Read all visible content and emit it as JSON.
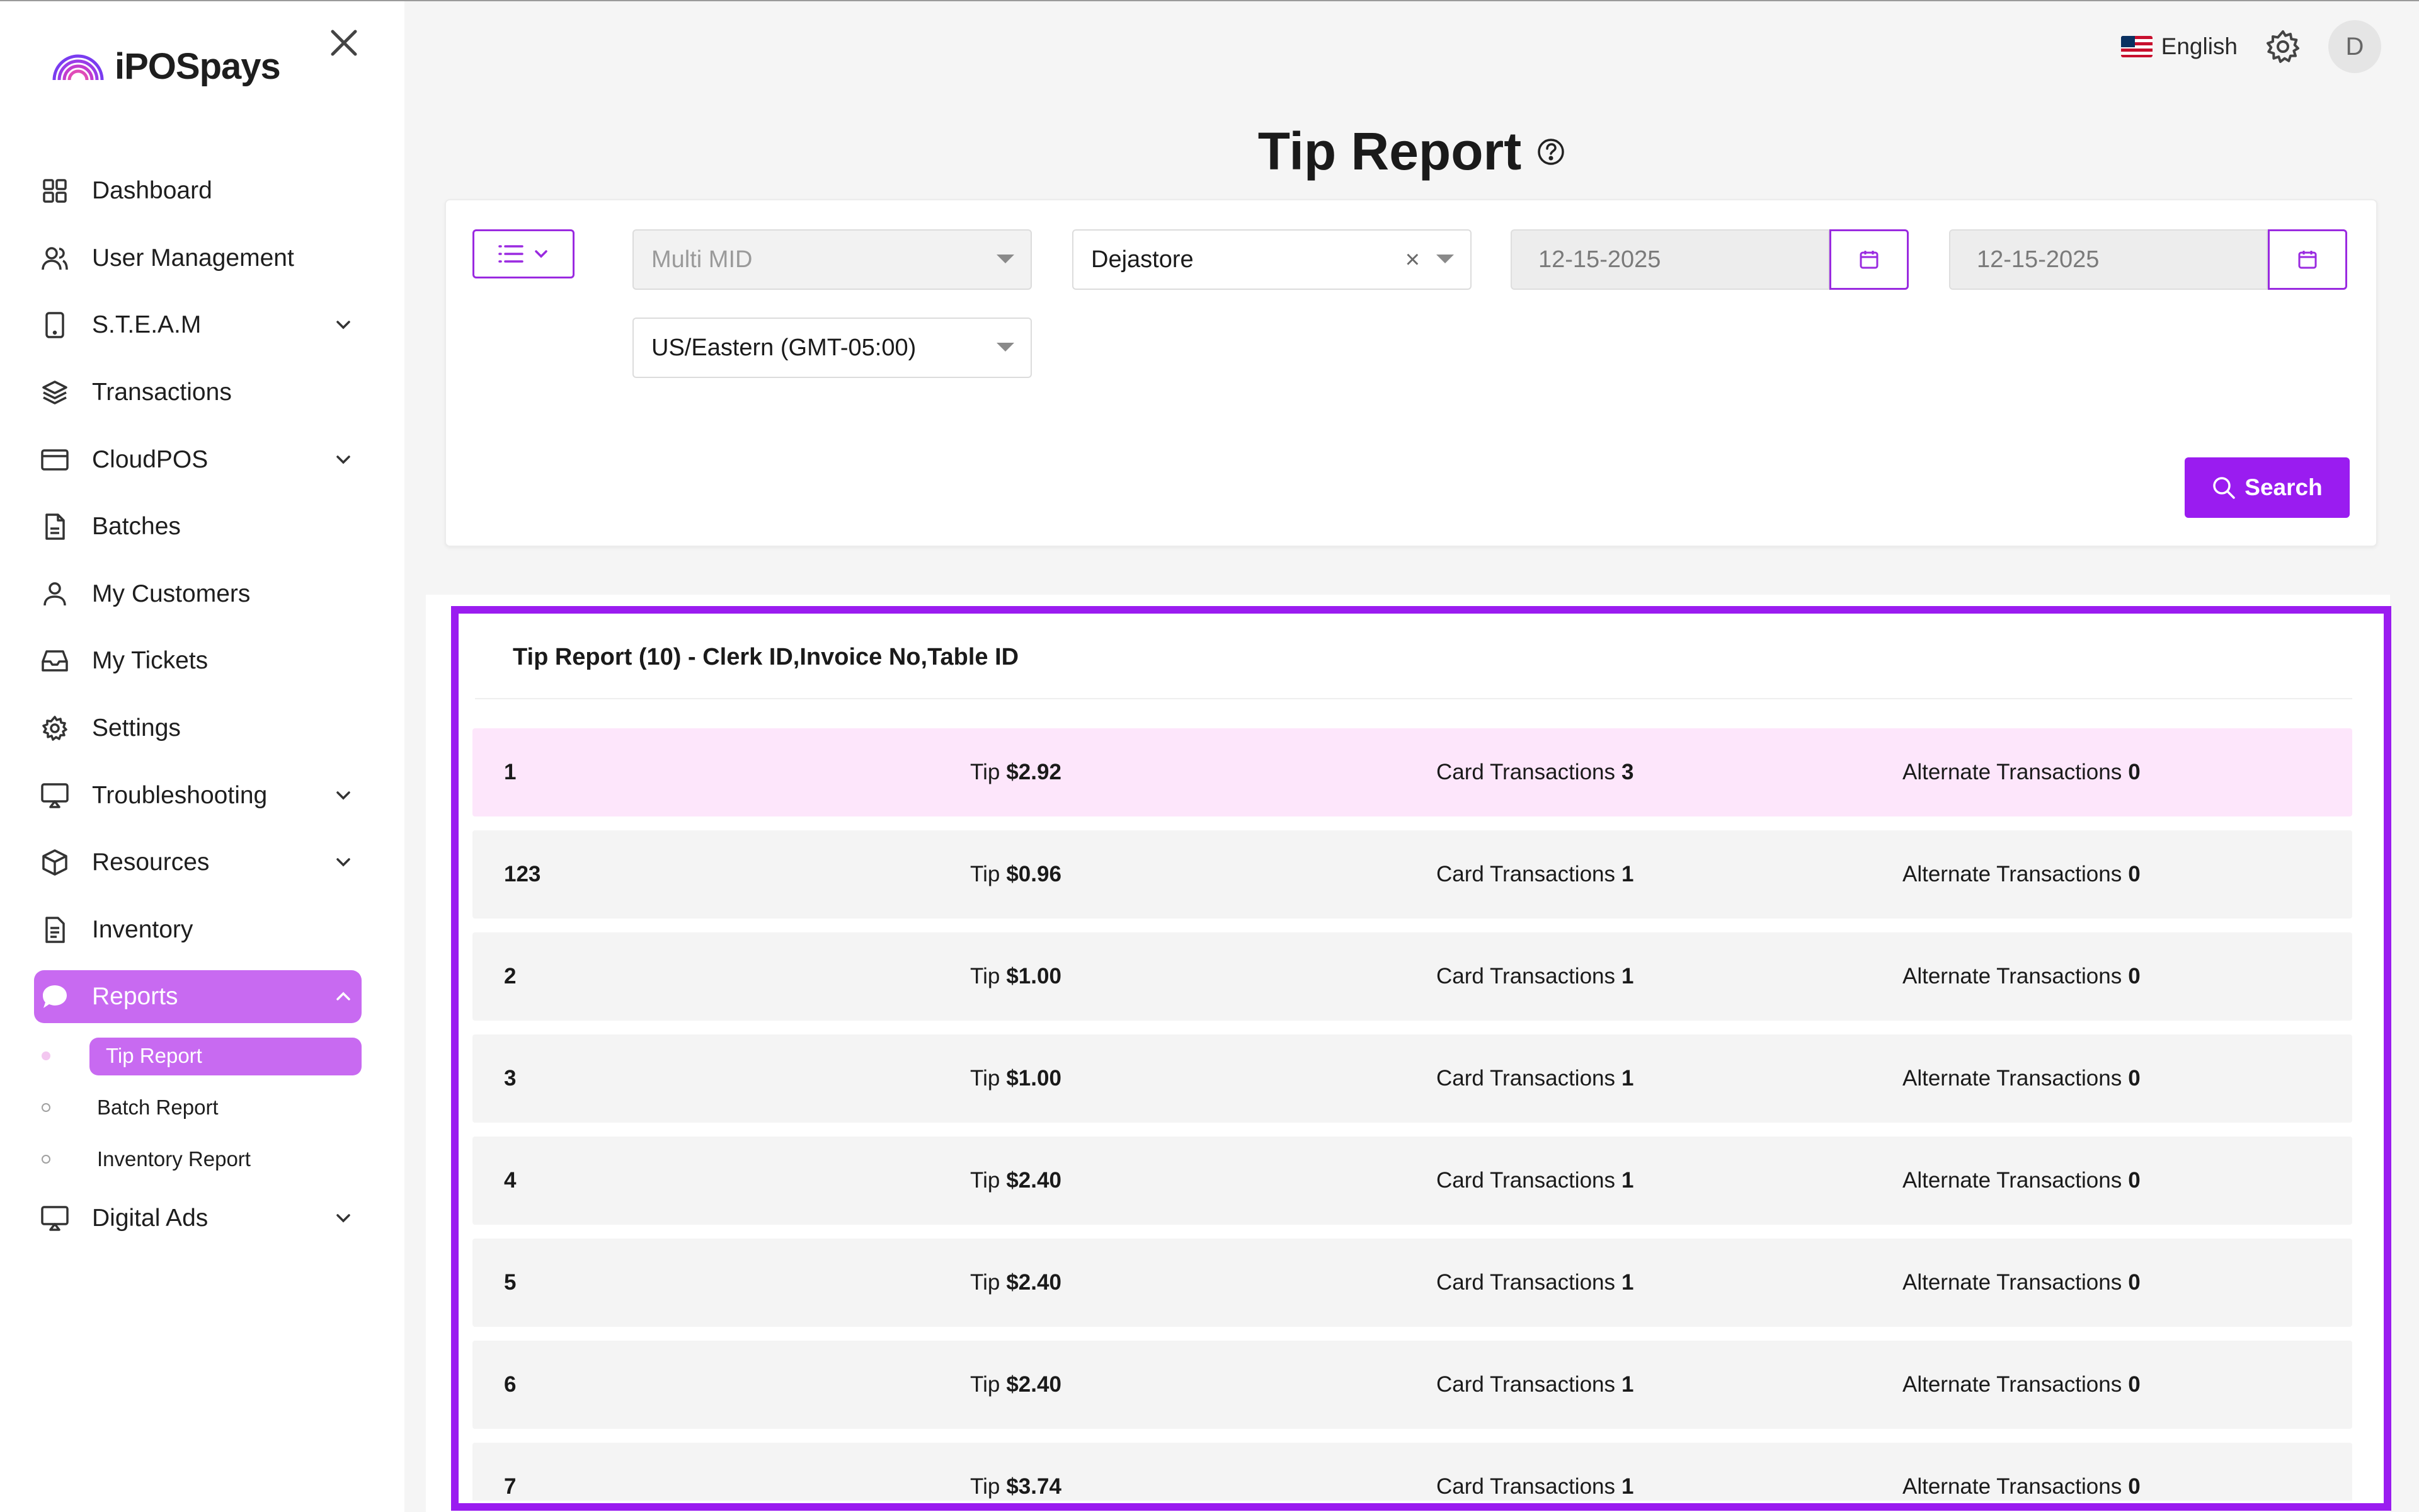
{
  "brand": {
    "name": "iPOSpays"
  },
  "sidebar": {
    "items": [
      {
        "label": "Dashboard",
        "icon": "grid-icon"
      },
      {
        "label": "User Management",
        "icon": "users-icon"
      },
      {
        "label": "S.T.E.A.M",
        "icon": "tablet-icon",
        "expandable": true
      },
      {
        "label": "Transactions",
        "icon": "layers-icon"
      },
      {
        "label": "CloudPOS",
        "icon": "credit-card-icon",
        "expandable": true
      },
      {
        "label": "Batches",
        "icon": "file-icon"
      },
      {
        "label": "My Customers",
        "icon": "user-icon"
      },
      {
        "label": "My Tickets",
        "icon": "inbox-icon"
      },
      {
        "label": "Settings",
        "icon": "gear-icon"
      },
      {
        "label": "Troubleshooting",
        "icon": "monitor-icon",
        "expandable": true
      },
      {
        "label": "Resources",
        "icon": "box-icon",
        "expandable": true
      },
      {
        "label": "Inventory",
        "icon": "document-icon"
      },
      {
        "label": "Reports",
        "icon": "chat-bubble-icon",
        "expanded": true,
        "active": true
      },
      {
        "label": "Digital Ads",
        "icon": "monitor-icon",
        "expandable": true
      }
    ],
    "reports_sub": [
      {
        "label": "Tip Report",
        "active": true
      },
      {
        "label": "Batch Report"
      },
      {
        "label": "Inventory Report"
      }
    ]
  },
  "header": {
    "language": "English",
    "avatar_initial": "D"
  },
  "page": {
    "title": "Tip Report"
  },
  "filters": {
    "mid_placeholder": "Multi MID",
    "store": "Dejastore",
    "clear_symbol": "×",
    "start_date": "12-15-2025",
    "end_date": "12-15-2025",
    "timezone": "US/Eastern (GMT-05:00)",
    "search_label": "Search"
  },
  "report": {
    "title": "Tip Report (10) - Clerk ID,Invoice No,Table ID",
    "labels": {
      "tip": "Tip",
      "card": "Card Transactions",
      "alternate": "Alternate Transactions"
    },
    "rows": [
      {
        "id": "1",
        "tip": "$2.92",
        "card": "3",
        "alternate": "0"
      },
      {
        "id": "123",
        "tip": "$0.96",
        "card": "1",
        "alternate": "0"
      },
      {
        "id": "2",
        "tip": "$1.00",
        "card": "1",
        "alternate": "0"
      },
      {
        "id": "3",
        "tip": "$1.00",
        "card": "1",
        "alternate": "0"
      },
      {
        "id": "4",
        "tip": "$2.40",
        "card": "1",
        "alternate": "0"
      },
      {
        "id": "5",
        "tip": "$2.40",
        "card": "1",
        "alternate": "0"
      },
      {
        "id": "6",
        "tip": "$2.40",
        "card": "1",
        "alternate": "0"
      },
      {
        "id": "7",
        "tip": "$3.74",
        "card": "1",
        "alternate": "0"
      }
    ]
  },
  "colors": {
    "accent": "#9a1cf0",
    "sidebar_active": "#c86af1",
    "row_highlight": "#fde6fb"
  }
}
